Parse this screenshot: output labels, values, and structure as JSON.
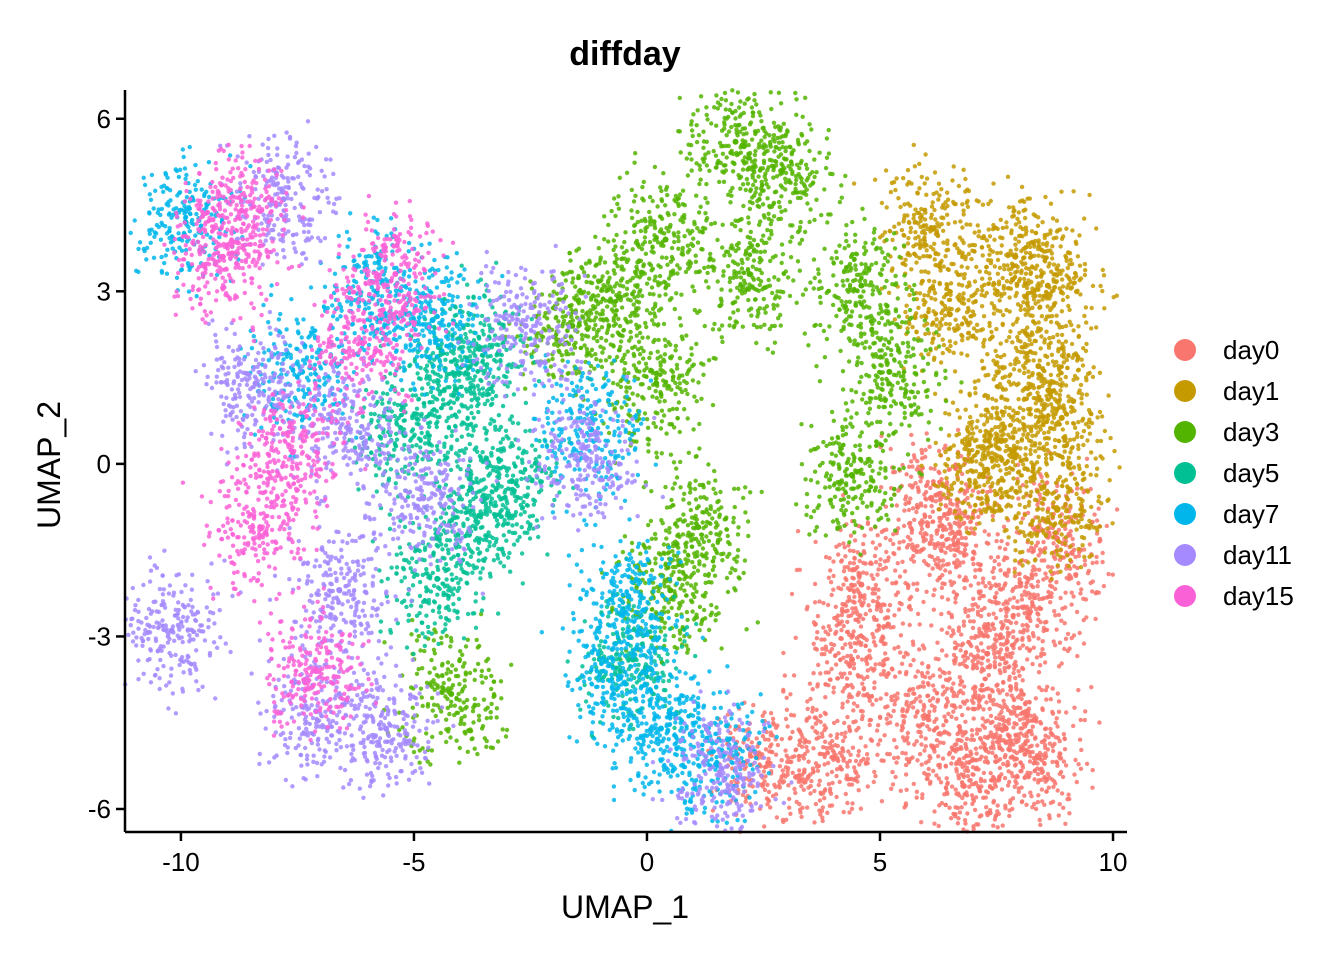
{
  "chart_data": {
    "type": "scatter",
    "title": "diffday",
    "xlabel": "UMAP_1",
    "ylabel": "UMAP_2",
    "xlim": [
      -11.2,
      10.3
    ],
    "ylim": [
      -6.4,
      6.5
    ],
    "x_ticks": [
      -10,
      -5,
      0,
      5,
      10
    ],
    "y_ticks": [
      -6,
      -3,
      0,
      3,
      6
    ],
    "x_tick_labels": [
      "-10",
      "-5",
      "0",
      "5",
      "10"
    ],
    "y_tick_labels": [
      "-6",
      "-3",
      "0",
      "3",
      "6"
    ],
    "grid": false,
    "legend": "right",
    "series": [
      {
        "name": "day0",
        "color": "#F8766D",
        "points": [
          [
            7.3,
            -3.3
          ],
          [
            6.0,
            -4.4
          ],
          [
            8.2,
            -2.6
          ],
          [
            6.6,
            -1.4
          ],
          [
            4.6,
            -2.1
          ],
          [
            6.1,
            -0.6
          ],
          [
            7.7,
            -4.6
          ],
          [
            6.8,
            -5.6
          ],
          [
            4.0,
            -5.1
          ],
          [
            2.6,
            -5.2
          ],
          [
            8.8,
            -1.3
          ],
          [
            4.4,
            -3.4
          ],
          [
            8.4,
            -5.1
          ]
        ]
      },
      {
        "name": "day1",
        "color": "#C49A00",
        "points": [
          [
            7.9,
            3.6
          ],
          [
            8.4,
            1.7
          ],
          [
            7.6,
            0.4
          ],
          [
            6.5,
            2.6
          ],
          [
            8.8,
            -0.8
          ],
          [
            6.1,
            4.1
          ],
          [
            8.6,
            3.1
          ],
          [
            7.3,
            -0.1
          ],
          [
            8.9,
            0.8
          ]
        ]
      },
      {
        "name": "day3",
        "color": "#53B400",
        "points": [
          [
            1.9,
            5.6
          ],
          [
            0.4,
            3.9
          ],
          [
            -1.6,
            2.4
          ],
          [
            0.2,
            1.4
          ],
          [
            2.2,
            3.3
          ],
          [
            4.6,
            3.1
          ],
          [
            5.2,
            1.6
          ],
          [
            4.4,
            -0.2
          ],
          [
            1.1,
            -1.1
          ],
          [
            0.5,
            -2.2
          ],
          [
            2.9,
            5.1
          ],
          [
            -0.6,
            2.9
          ],
          [
            -4.2,
            -4.0
          ]
        ]
      },
      {
        "name": "day5",
        "color": "#00C094",
        "points": [
          [
            -4.1,
            1.3
          ],
          [
            -3.6,
            -0.9
          ],
          [
            -4.5,
            -2.0
          ],
          [
            -2.9,
            -0.3
          ],
          [
            -0.3,
            -3.4
          ],
          [
            -5.2,
            0.5
          ],
          [
            -3.6,
            2.0
          ]
        ]
      },
      {
        "name": "day7",
        "color": "#00B6EB",
        "points": [
          [
            -0.6,
            -3.7
          ],
          [
            0.3,
            -4.6
          ],
          [
            -5.8,
            3.0
          ],
          [
            -4.6,
            2.5
          ],
          [
            -1.2,
            0.6
          ],
          [
            -7.4,
            1.6
          ],
          [
            -9.9,
            4.2
          ],
          [
            1.4,
            -5.0
          ],
          [
            -0.4,
            -2.3
          ]
        ]
      },
      {
        "name": "day11",
        "color": "#A58AFF",
        "points": [
          [
            -7.8,
            4.6
          ],
          [
            -6.6,
            -2.2
          ],
          [
            -5.6,
            -4.6
          ],
          [
            -4.8,
            -0.6
          ],
          [
            -1.3,
            0.1
          ],
          [
            -8.4,
            1.4
          ],
          [
            -6.4,
            0.6
          ],
          [
            -2.6,
            2.4
          ],
          [
            1.6,
            -5.3
          ],
          [
            -10.2,
            -2.9
          ],
          [
            -7.1,
            -4.3
          ]
        ]
      },
      {
        "name": "day15",
        "color": "#FB61D7",
        "points": [
          [
            -8.7,
            4.4
          ],
          [
            -6.1,
            2.1
          ],
          [
            -7.6,
            0.2
          ],
          [
            -7.1,
            -3.6
          ],
          [
            -8.3,
            -1.1
          ],
          [
            -9.1,
            3.6
          ],
          [
            -5.4,
            3.3
          ]
        ]
      }
    ]
  }
}
